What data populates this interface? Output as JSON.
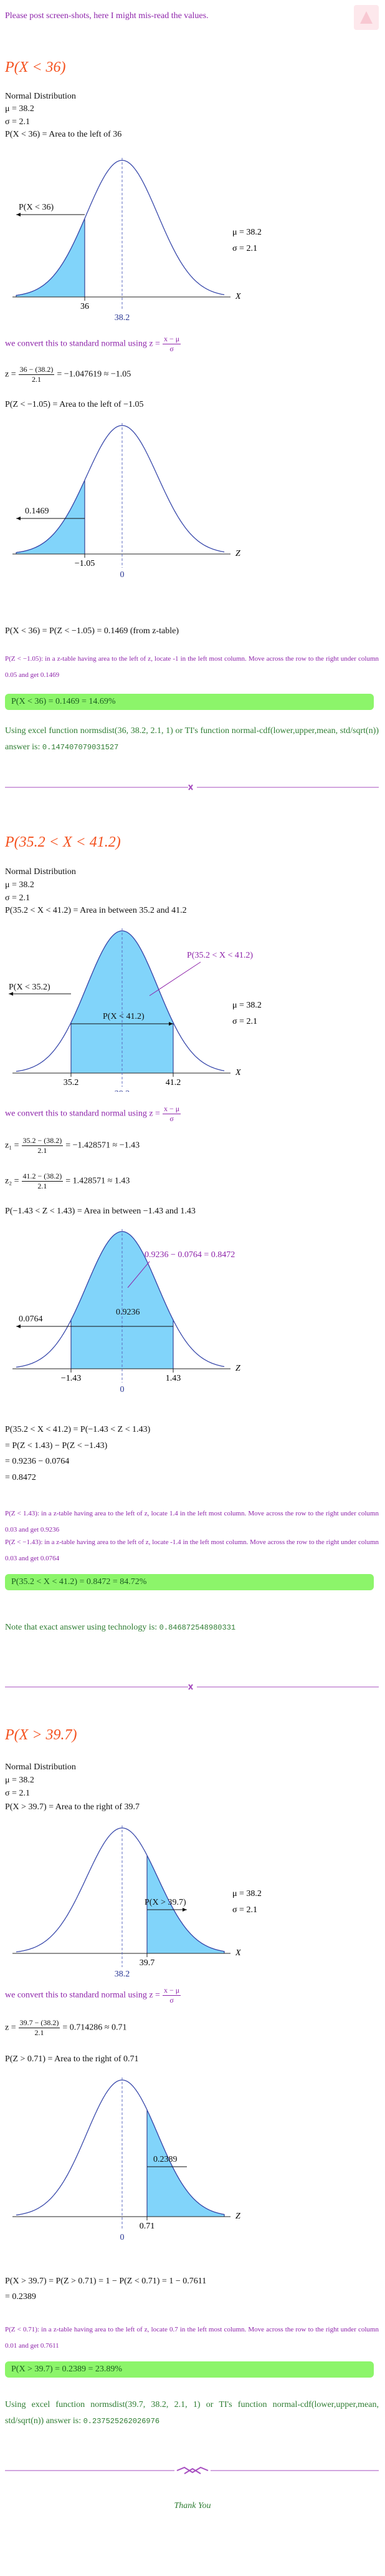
{
  "intro": "Please post screen-shots, here I might mis-read the values.",
  "parts": [
    {
      "heading": "P(X < 36)",
      "given": [
        "Normal Distribution",
        "μ = 38.2",
        "σ = 2.1",
        "P(X < 36) = Area to the left of 36"
      ],
      "graph_x": {
        "labels": [
          "P(X < 36)"
        ],
        "mu": "μ = 38.2",
        "sigma": "σ = 2.1",
        "cut": [
          "36"
        ],
        "mean": "38.2",
        "axis": "X"
      },
      "convert": {
        "text": "we convert this to standard normal using z =",
        "num": "x − μ",
        "den": "σ"
      },
      "z": [
        {
          "lhs": "z =",
          "num": "36 − (38.2)",
          "den": "2.1",
          "rhs": "= −1.047619 ≈ −1.05"
        }
      ],
      "z_area": "P(Z < −1.05) = Area to the left of −1.05",
      "graph_z": {
        "labels": [
          "0.1469"
        ],
        "cut": [
          "−1.05"
        ],
        "mean": "0",
        "axis": "Z"
      },
      "steps": [
        "P(X < 36) = P(Z < −1.05) = 0.1469 (from z-table)"
      ],
      "table_notes": [
        "P(Z < −1.05): in a z-table having area to the left of z, locate -1 in the left most column. Move across the row to the right under column 0.05 and get 0.1469"
      ],
      "answer": "P(X < 36) = 0.1469 = 14.69%",
      "tech": {
        "text": "Using excel function normsdist(36, 38.2, 2.1, 1) or TI's function normal-cdf(lower,upper,mean, std/sqrt(n)) answer is:",
        "value": "0.147407079031527"
      }
    },
    {
      "heading": "P(35.2 < X < 41.2)",
      "given": [
        "Normal Distribution",
        "μ = 38.2",
        "σ = 2.1",
        "P(35.2 < X < 41.2) = Area in between 35.2 and 41.2"
      ],
      "graph_x": {
        "labels": [
          "P(35.2 < X < 41.2)",
          "P(X < 35.2)",
          "P(X < 41.2)"
        ],
        "mu": "μ = 38.2",
        "sigma": "σ = 2.1",
        "cut": [
          "35.2",
          "41.2"
        ],
        "mean": "38.2",
        "axis": "X"
      },
      "convert": {
        "text": "we convert this to standard normal using z =",
        "num": "x − μ",
        "den": "σ"
      },
      "z": [
        {
          "lhs": "z₁ =",
          "num": "35.2 − (38.2)",
          "den": "2.1",
          "rhs": "= −1.428571 ≈ −1.43"
        },
        {
          "lhs": "z₂ =",
          "num": "41.2 − (38.2)",
          "den": "2.1",
          "rhs": "= 1.428571 ≈ 1.43"
        }
      ],
      "z_area": "P(−1.43 < Z < 1.43) = Area in between −1.43 and 1.43",
      "graph_z": {
        "labels": [
          "0.9236 − 0.0764 = 0.8472",
          "0.0764",
          "0.9236"
        ],
        "cut": [
          "−1.43",
          "1.43"
        ],
        "mean": "0",
        "axis": "Z"
      },
      "steps": [
        "P(35.2 < X < 41.2) = P(−1.43 < Z < 1.43)",
        "= P(Z < 1.43) − P(Z < −1.43)",
        "= 0.9236 − 0.0764",
        "= 0.8472"
      ],
      "table_notes": [
        "P(Z < 1.43): in a z-table having area to the left of z, locate 1.4 in the left most column. Move across the row to the right under column 0.03 and get 0.9236",
        "P(Z < −1.43): in a z-table having area to the left of z, locate -1.4 in the left most column. Move across the row to the right under column 0.03 and get 0.0764"
      ],
      "answer": "P(35.2 < X < 41.2) = 0.8472 = 84.72%",
      "tech": {
        "text": "Note that exact answer using technology is:",
        "value": "0.846872548980331"
      }
    },
    {
      "heading": "P(X > 39.7)",
      "given": [
        "Normal Distribution",
        "μ = 38.2",
        "σ = 2.1",
        "P(X > 39.7) = Area to the right of 39.7"
      ],
      "graph_x": {
        "labels": [
          "P(X > 39.7)"
        ],
        "mu": "μ = 38.2",
        "sigma": "σ = 2.1",
        "cut": [
          "39.7"
        ],
        "mean": "38.2",
        "axis": "X"
      },
      "convert": {
        "text": "we convert this to standard normal using z =",
        "num": "x − μ",
        "den": "σ"
      },
      "z": [
        {
          "lhs": "z =",
          "num": "39.7 − (38.2)",
          "den": "2.1",
          "rhs": "= 0.714286 ≈ 0.71"
        }
      ],
      "z_area": "P(Z > 0.71) = Area to the right of 0.71",
      "graph_z": {
        "labels": [
          "0.2389"
        ],
        "cut": [
          "0.71"
        ],
        "mean": "0",
        "axis": "Z"
      },
      "steps": [
        "P(X > 39.7) = P(Z > 0.71) = 1 − P(Z < 0.71) = 1 − 0.7611",
        "= 0.2389"
      ],
      "table_notes": [
        "P(Z < 0.71): in a z-table having area to the left of z, locate 0.7 in the left most column. Move across the row to the right under column 0.01 and get 0.7611"
      ],
      "answer": "P(X > 39.7) = 0.2389 = 23.89%",
      "tech": {
        "text": "Using excel function normsdist(39.7, 38.2, 2.1, 1) or TI's function normal-cdf(lower,upper,mean, std/sqrt(n)) answer is:",
        "value": "0.237525262026976"
      }
    }
  ],
  "closing": "Thank You"
}
